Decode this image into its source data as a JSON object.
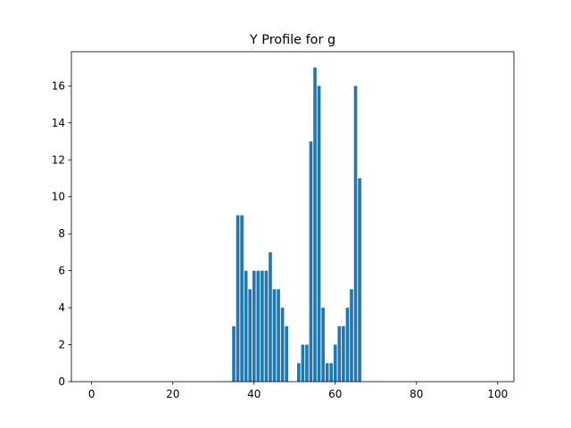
{
  "chart_data": {
    "type": "bar",
    "title": "Y Profile for g",
    "xlabel": "",
    "ylabel": "",
    "xlim": [
      -5,
      104
    ],
    "ylim": [
      0,
      17.85
    ],
    "xticks": [
      0,
      20,
      40,
      60,
      80,
      100
    ],
    "yticks": [
      0,
      2,
      4,
      6,
      8,
      10,
      12,
      14,
      16
    ],
    "grid": false,
    "bar_color": "#1f77b4",
    "bar_width": 0.8,
    "x": [
      35,
      36,
      37,
      38,
      39,
      40,
      41,
      42,
      43,
      44,
      45,
      46,
      47,
      48,
      49,
      50,
      51,
      52,
      53,
      54,
      55,
      56,
      57,
      58,
      59,
      60,
      61,
      62,
      63,
      64,
      65,
      66
    ],
    "values": [
      3,
      9,
      9,
      6,
      5,
      6,
      6,
      6,
      6,
      7,
      5,
      5,
      4,
      3,
      0,
      0,
      1,
      2,
      2,
      13,
      17,
      16,
      4,
      1,
      1,
      2,
      3,
      3,
      4,
      5,
      16,
      11
    ]
  }
}
